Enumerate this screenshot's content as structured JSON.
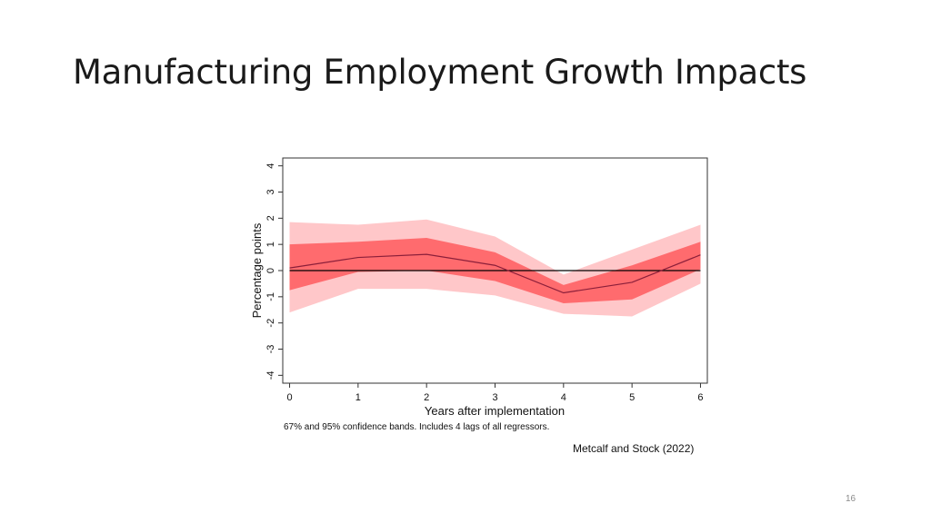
{
  "slide": {
    "title": "Manufacturing Employment Growth Impacts",
    "citation": "Metcalf and Stock (2022)",
    "page_number": "16"
  },
  "colors": {
    "band95": "#ffc7c9",
    "band67": "#ff6b6e",
    "line": "#8b1f3a",
    "zero_line": "#000000"
  },
  "chart_data": {
    "type": "line",
    "title": "",
    "xlabel": "Years after implementation",
    "ylabel": "Percentage points",
    "note": "67% and 95% confidence bands. Includes 4 lags of all regressors.",
    "x": [
      0,
      1,
      2,
      3,
      4,
      5,
      6
    ],
    "xticks": [
      "0",
      "1",
      "2",
      "3",
      "4",
      "5",
      "6"
    ],
    "yticks": [
      "-4",
      "-3",
      "-2",
      "-1",
      "0",
      "1",
      "2",
      "3",
      "4"
    ],
    "xlim": [
      -0.1,
      6.1
    ],
    "ylim": [
      -4.3,
      4.3
    ],
    "grid": false,
    "legend": "none",
    "series": [
      {
        "role": "point_estimate",
        "values": [
          0.1,
          0.5,
          0.62,
          0.2,
          -0.85,
          -0.45,
          0.6
        ]
      }
    ],
    "bands": [
      {
        "level": "95%",
        "upper": [
          1.85,
          1.75,
          1.95,
          1.3,
          -0.15,
          0.8,
          1.75
        ],
        "lower": [
          -1.6,
          -0.7,
          -0.7,
          -0.95,
          -1.65,
          -1.75,
          -0.5
        ]
      },
      {
        "level": "67%",
        "upper": [
          1.0,
          1.1,
          1.25,
          0.7,
          -0.55,
          0.2,
          1.1
        ],
        "lower": [
          -0.75,
          -0.05,
          0.0,
          -0.4,
          -1.25,
          -1.1,
          0.05
        ]
      }
    ]
  }
}
